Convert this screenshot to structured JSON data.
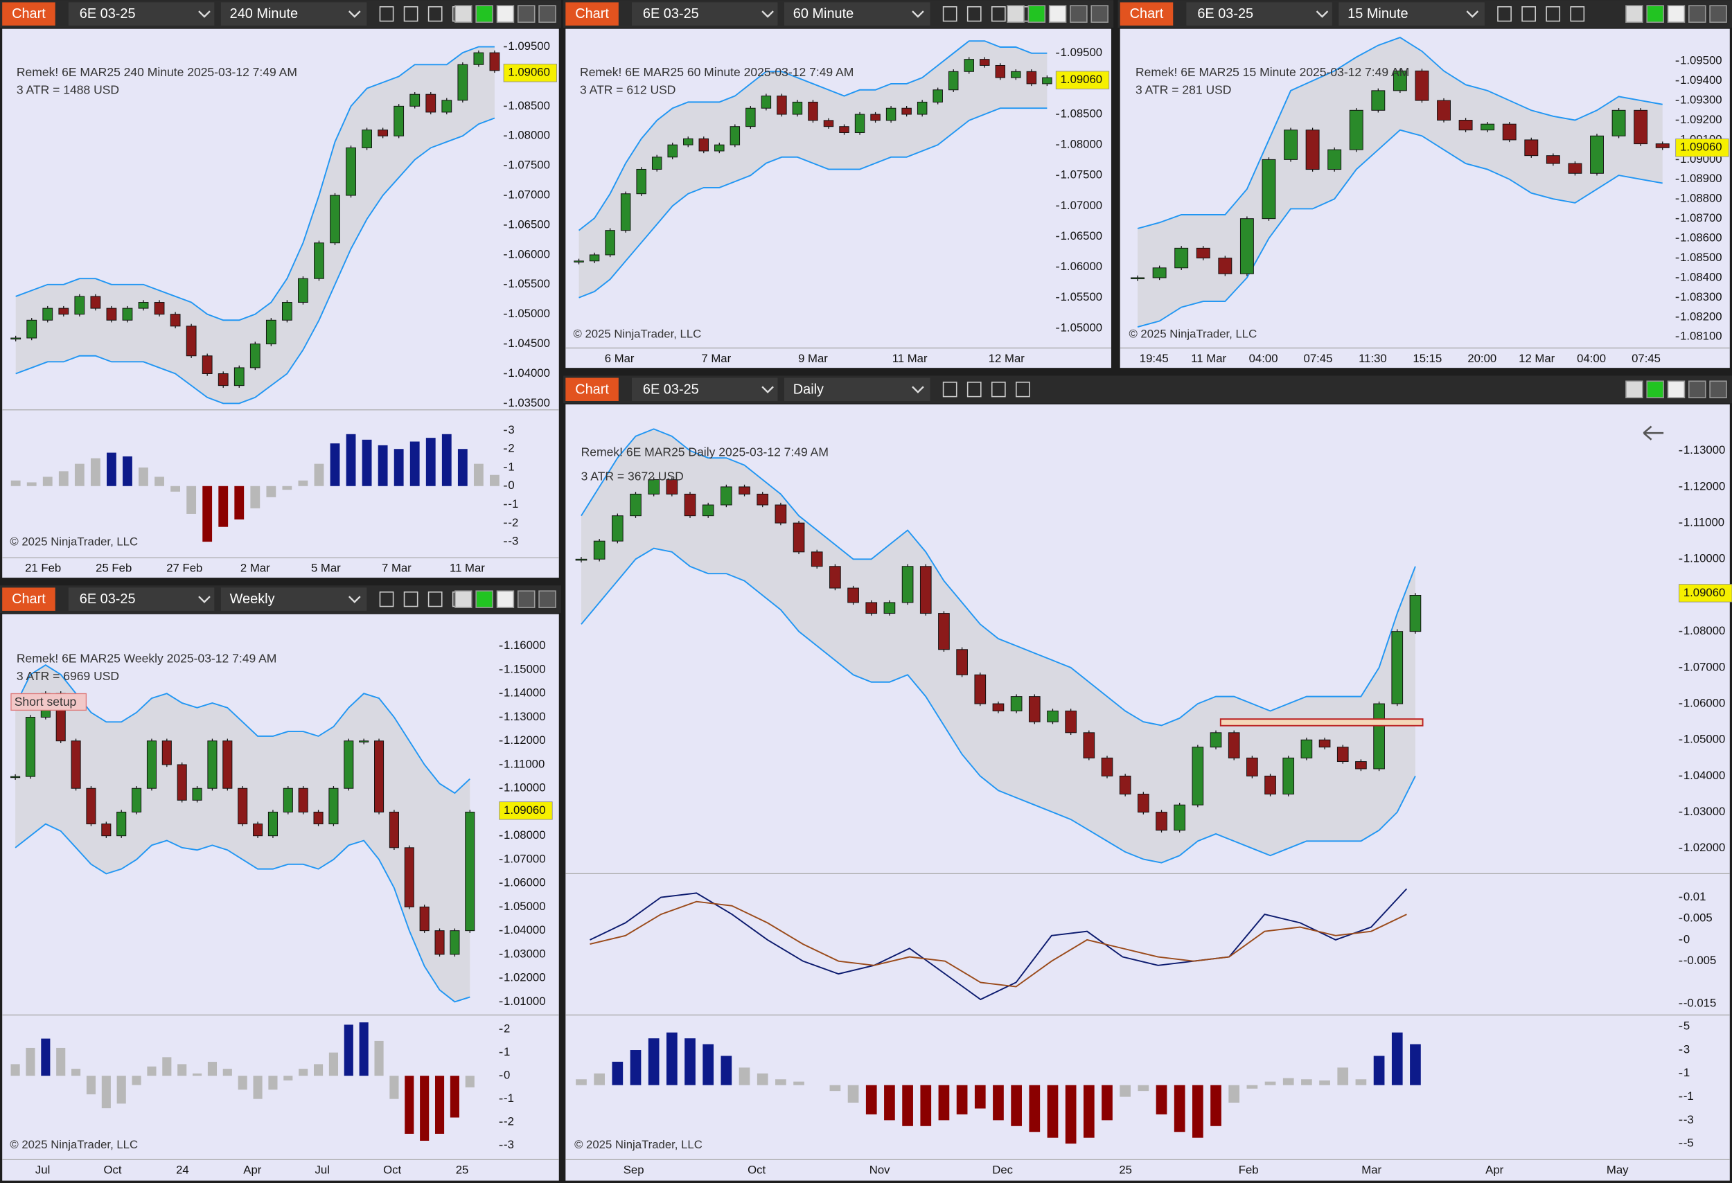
{
  "panels": [
    {
      "toolbar": {
        "button": "Chart",
        "instrument": "6E 03-25",
        "interval": "240 Minute"
      },
      "header": "Remek!  6E MAR25  240 Minute  2025-03-12 7:49 AM",
      "atr": "3 ATR = 1488 USD",
      "price_label": "1.09060",
      "ylim": [
        1.0341,
        1.0969
      ],
      "yticks": [
        "1.09500",
        "1.09000",
        "1.08500",
        "1.08000",
        "1.07500",
        "1.07000",
        "1.06500",
        "1.06000",
        "1.05500",
        "1.05000",
        "1.04500",
        "1.04000",
        "1.03500"
      ],
      "close": [
        1.046,
        1.049,
        1.051,
        1.05,
        1.053,
        1.051,
        1.049,
        1.051,
        1.052,
        1.05,
        1.048,
        1.043,
        1.04,
        1.038,
        1.041,
        1.045,
        1.049,
        1.052,
        1.056,
        1.062,
        1.07,
        1.078,
        1.081,
        1.08,
        1.085,
        1.087,
        1.084,
        1.086,
        1.092,
        1.094,
        1.091
      ],
      "upper": [
        1.053,
        1.054,
        1.055,
        1.055,
        1.056,
        1.056,
        1.055,
        1.055,
        1.055,
        1.054,
        1.053,
        1.052,
        1.05,
        1.049,
        1.049,
        1.05,
        1.052,
        1.056,
        1.062,
        1.07,
        1.079,
        1.085,
        1.088,
        1.089,
        1.09,
        1.092,
        1.092,
        1.092,
        1.094,
        1.095,
        1.095
      ],
      "lower": [
        1.04,
        1.041,
        1.042,
        1.042,
        1.043,
        1.043,
        1.042,
        1.042,
        1.042,
        1.041,
        1.04,
        1.038,
        1.036,
        1.035,
        1.035,
        1.036,
        1.038,
        1.04,
        1.044,
        1.049,
        1.055,
        1.061,
        1.066,
        1.07,
        1.073,
        1.076,
        1.078,
        1.079,
        1.08,
        1.082,
        1.083
      ],
      "indicator": {
        "ylim": [
          -3.57,
          4.05
        ],
        "yticks": [
          3,
          2,
          1,
          0,
          -1,
          -2,
          -3
        ],
        "values": [
          0.3,
          0.2,
          0.5,
          0.8,
          1.2,
          1.5,
          1.8,
          1.6,
          1.0,
          0.5,
          -0.3,
          -1.5,
          -3,
          -2.2,
          -1.8,
          -1.2,
          -0.6,
          -0.2,
          0.3,
          1.2,
          2.3,
          2.8,
          2.5,
          2.2,
          2,
          2.4,
          2.6,
          2.8,
          2,
          1.2,
          0.6
        ]
      },
      "xlabels": [
        "21 Feb",
        "25 Feb",
        "27 Feb",
        "2 Mar",
        "5 Mar",
        "7 Mar",
        "11 Mar"
      ],
      "copyright": "© 2025 NinjaTrader, LLC"
    },
    {
      "toolbar": {
        "button": "Chart",
        "instrument": "6E 03-25",
        "interval": "60 Minute"
      },
      "header": "Remek!  6E MAR25  60 Minute  2025-03-12 7:49 AM",
      "atr": "3 ATR = 612 USD",
      "price_label": "1.09060",
      "ylim": [
        1.0473,
        1.0979
      ],
      "yticks": [
        "1.09500",
        "1.09000",
        "1.08500",
        "1.08000",
        "1.07500",
        "1.07000",
        "1.06500",
        "1.06000",
        "1.05500",
        "1.05000"
      ],
      "close": [
        1.061,
        1.062,
        1.066,
        1.072,
        1.076,
        1.078,
        1.08,
        1.081,
        1.079,
        1.08,
        1.083,
        1.086,
        1.088,
        1.085,
        1.087,
        1.084,
        1.083,
        1.082,
        1.085,
        1.084,
        1.086,
        1.085,
        1.087,
        1.089,
        1.092,
        1.094,
        1.093,
        1.091,
        1.092,
        1.09,
        1.091
      ],
      "upper": [
        1.066,
        1.068,
        1.072,
        1.077,
        1.081,
        1.084,
        1.086,
        1.087,
        1.087,
        1.087,
        1.088,
        1.09,
        1.092,
        1.092,
        1.091,
        1.09,
        1.089,
        1.088,
        1.089,
        1.089,
        1.09,
        1.09,
        1.091,
        1.093,
        1.095,
        1.097,
        1.097,
        1.096,
        1.096,
        1.095,
        1.095
      ],
      "lower": [
        1.055,
        1.056,
        1.058,
        1.061,
        1.064,
        1.067,
        1.07,
        1.072,
        1.073,
        1.073,
        1.074,
        1.075,
        1.077,
        1.078,
        1.078,
        1.077,
        1.076,
        1.076,
        1.076,
        1.077,
        1.078,
        1.078,
        1.079,
        1.08,
        1.082,
        1.084,
        1.085,
        1.086,
        1.086,
        1.086,
        1.086
      ],
      "xlabels": [
        "6 Mar",
        "7 Mar",
        "9 Mar",
        "11 Mar",
        "12 Mar"
      ],
      "copyright": "© 2025 NinjaTrader, LLC"
    },
    {
      "toolbar": {
        "button": "Chart",
        "instrument": "6E 03-25",
        "interval": "15 Minute"
      },
      "header": "Remek!  6E MAR25  15 Minute  2025-03-12 7:49 AM",
      "atr": "3 ATR = 281 USD",
      "price_label": "1.09060",
      "ylim": [
        1.0806,
        1.0963
      ],
      "yticks": [
        "1.09500",
        "1.09400",
        "1.09300",
        "1.09200",
        "1.09100",
        "1.09000",
        "1.08900",
        "1.08800",
        "1.08700",
        "1.08600",
        "1.08500",
        "1.08400",
        "1.08300",
        "1.08200",
        "1.08100"
      ],
      "close": [
        1.084,
        1.0845,
        1.0855,
        1.085,
        1.0842,
        1.087,
        1.09,
        1.0915,
        1.0895,
        1.0905,
        1.0925,
        1.0935,
        1.0945,
        1.093,
        1.092,
        1.0915,
        1.0918,
        1.091,
        1.0902,
        1.0898,
        1.0893,
        1.0912,
        1.0925,
        1.0908,
        1.0906
      ],
      "upper": [
        1.0865,
        1.0868,
        1.0872,
        1.0872,
        1.0872,
        1.0885,
        1.091,
        1.0935,
        1.094,
        1.0945,
        1.0952,
        1.0958,
        1.0962,
        1.0955,
        1.0945,
        1.0938,
        1.0935,
        1.093,
        1.0925,
        1.0922,
        1.092,
        1.0925,
        1.0932,
        1.093,
        1.0928
      ],
      "lower": [
        1.0815,
        1.0818,
        1.0825,
        1.0828,
        1.0828,
        1.084,
        1.086,
        1.0875,
        1.0875,
        1.088,
        1.0895,
        1.0905,
        1.0915,
        1.0912,
        1.0905,
        1.0898,
        1.0895,
        1.089,
        1.0883,
        1.088,
        1.0878,
        1.0885,
        1.0892,
        1.089,
        1.0888
      ],
      "xlabels": [
        "19:45",
        "11 Mar",
        "04:00",
        "07:45",
        "11:30",
        "15:15",
        "20:00",
        "12 Mar",
        "04:00",
        "07:45"
      ],
      "copyright": "© 2025 NinjaTrader, LLC"
    },
    {
      "toolbar": {
        "button": "Chart",
        "instrument": "6E 03-25",
        "interval": "Weekly"
      },
      "header": "Remek!  6E MAR25  Weekly  2025-03-12 7:49 AM",
      "atr": "3 ATR = 6969 USD",
      "setup_label": "Short setup",
      "price_label": "1.09060",
      "ylim": [
        1.0049,
        1.1702
      ],
      "yticks": [
        "1.16000",
        "1.15000",
        "1.14000",
        "1.13000",
        "1.12000",
        "1.11000",
        "1.10000",
        "1.09000",
        "1.08000",
        "1.07000",
        "1.06000",
        "1.05000",
        "1.04000",
        "1.03000",
        "1.02000",
        "1.01000"
      ],
      "close": [
        1.105,
        1.13,
        1.14,
        1.12,
        1.1,
        1.085,
        1.08,
        1.09,
        1.1,
        1.12,
        1.11,
        1.095,
        1.1,
        1.12,
        1.1,
        1.085,
        1.08,
        1.09,
        1.1,
        1.09,
        1.085,
        1.1,
        1.12,
        1.12,
        1.09,
        1.075,
        1.05,
        1.04,
        1.03,
        1.04,
        1.09
      ],
      "upper": [
        1.135,
        1.148,
        1.152,
        1.148,
        1.14,
        1.132,
        1.128,
        1.128,
        1.132,
        1.138,
        1.14,
        1.136,
        1.134,
        1.136,
        1.134,
        1.128,
        1.122,
        1.122,
        1.124,
        1.124,
        1.122,
        1.126,
        1.134,
        1.14,
        1.138,
        1.13,
        1.12,
        1.11,
        1.102,
        1.098,
        1.104
      ],
      "lower": [
        1.075,
        1.08,
        1.085,
        1.082,
        1.075,
        1.068,
        1.064,
        1.066,
        1.07,
        1.076,
        1.078,
        1.075,
        1.074,
        1.076,
        1.074,
        1.07,
        1.066,
        1.066,
        1.068,
        1.068,
        1.066,
        1.07,
        1.076,
        1.078,
        1.07,
        1.058,
        1.04,
        1.025,
        1.015,
        1.01,
        1.012
      ],
      "indicator": {
        "ylim": [
          -3.52,
          2.57
        ],
        "yticks": [
          2,
          1,
          0,
          -1,
          -2,
          -3
        ],
        "values": [
          0.5,
          1.2,
          1.6,
          1.2,
          0.3,
          -0.8,
          -1.4,
          -1.2,
          -0.4,
          0.4,
          0.8,
          0.5,
          0.1,
          0.6,
          0.3,
          -0.6,
          -1.0,
          -0.6,
          -0.2,
          0.3,
          0.5,
          1.0,
          2.2,
          2.3,
          1.5,
          -1.0,
          -2.5,
          -2.8,
          -2.5,
          -1.8,
          -0.5
        ]
      },
      "xlabels": [
        "Jul",
        "Oct",
        "24",
        "Apr",
        "Jul",
        "Oct",
        "25"
      ],
      "copyright": "© 2025 NinjaTrader, LLC"
    },
    {
      "toolbar": {
        "button": "Chart",
        "instrument": "6E 03-25",
        "interval": "Daily"
      },
      "header": "Remek!  6E MAR25  Daily  2025-03-12 7:49 AM",
      "atr": "3 ATR = 3672 USD",
      "price_label": "1.09060",
      "ylim": [
        1.0133,
        1.141
      ],
      "yticks": [
        "1.13000",
        "1.12000",
        "1.11000",
        "1.10000",
        "1.09000",
        "1.08000",
        "1.07000",
        "1.06000",
        "1.05000",
        "1.04000",
        "1.03000",
        "1.02000"
      ],
      "close": [
        1.1,
        1.105,
        1.112,
        1.118,
        1.122,
        1.118,
        1.112,
        1.115,
        1.12,
        1.118,
        1.115,
        1.11,
        1.102,
        1.098,
        1.092,
        1.088,
        1.085,
        1.088,
        1.098,
        1.085,
        1.075,
        1.068,
        1.06,
        1.058,
        1.062,
        1.055,
        1.058,
        1.052,
        1.045,
        1.04,
        1.035,
        1.03,
        1.025,
        1.032,
        1.048,
        1.052,
        1.045,
        1.04,
        1.035,
        1.045,
        1.05,
        1.048,
        1.044,
        1.042,
        1.06,
        1.08,
        1.09
      ],
      "upper": [
        1.112,
        1.12,
        1.128,
        1.134,
        1.136,
        1.134,
        1.13,
        1.128,
        1.128,
        1.126,
        1.122,
        1.118,
        1.112,
        1.108,
        1.104,
        1.1,
        1.1,
        1.104,
        1.108,
        1.102,
        1.094,
        1.088,
        1.082,
        1.078,
        1.076,
        1.074,
        1.072,
        1.07,
        1.066,
        1.062,
        1.058,
        1.055,
        1.054,
        1.056,
        1.06,
        1.062,
        1.062,
        1.06,
        1.058,
        1.06,
        1.062,
        1.062,
        1.062,
        1.062,
        1.07,
        1.085,
        1.098
      ],
      "lower": [
        1.082,
        1.088,
        1.094,
        1.1,
        1.103,
        1.102,
        1.098,
        1.096,
        1.096,
        1.094,
        1.09,
        1.086,
        1.08,
        1.076,
        1.072,
        1.068,
        1.066,
        1.066,
        1.068,
        1.062,
        1.054,
        1.046,
        1.04,
        1.036,
        1.034,
        1.032,
        1.03,
        1.028,
        1.025,
        1.022,
        1.019,
        1.017,
        1.016,
        1.018,
        1.022,
        1.024,
        1.022,
        1.02,
        1.018,
        1.02,
        1.022,
        1.022,
        1.022,
        1.022,
        1.025,
        1.03,
        1.04
      ],
      "macd": {
        "ylim": [
          -0.0174,
          0.0153
        ],
        "yticks": [
          0.01,
          0.005,
          0,
          -0.005,
          -0.015
        ],
        "lines": [
          {
            "color": "#0b1a6e",
            "values": [
              0.0,
              0.004,
              0.01,
              0.011,
              0.006,
              0.0,
              -0.005,
              -0.008,
              -0.006,
              -0.002,
              -0.008,
              -0.014,
              -0.01,
              0.001,
              0.002,
              -0.004,
              -0.006,
              -0.005,
              -0.004,
              0.006,
              0.004,
              0.0,
              0.003,
              0.012
            ]
          },
          {
            "color": "#9a4a1a",
            "values": [
              -0.001,
              0.001,
              0.006,
              0.009,
              0.008,
              0.004,
              -0.001,
              -0.005,
              -0.006,
              -0.004,
              -0.005,
              -0.01,
              -0.011,
              -0.005,
              0.0,
              -0.002,
              -0.004,
              -0.005,
              -0.004,
              0.002,
              0.003,
              0.001,
              0.002,
              0.006
            ]
          }
        ]
      },
      "indicator": {
        "ylim": [
          -5.9,
          5.9
        ],
        "yticks": [
          5,
          3,
          1,
          -1,
          -3,
          -5
        ],
        "values": [
          0.5,
          1,
          2,
          3,
          4,
          4.5,
          4,
          3.5,
          2.5,
          1.5,
          1,
          0.5,
          0.3,
          0,
          -0.5,
          -1.5,
          -2.5,
          -3,
          -3.5,
          -3.5,
          -3,
          -2.5,
          -2,
          -3,
          -3.5,
          -4,
          -4.5,
          -5,
          -4.5,
          -3,
          -1,
          -0.5,
          -2.5,
          -4,
          -4.5,
          -3.5,
          -1.5,
          -0.3,
          0.3,
          0.6,
          0.5,
          0.4,
          1.5,
          0.5,
          2.5,
          4.5,
          3.5
        ]
      },
      "xlabels": [
        "Sep",
        "Oct",
        "Nov",
        "Dec",
        "25",
        "Feb",
        "Mar",
        "Apr",
        "May"
      ],
      "copyright": "© 2025 NinjaTrader, LLC"
    }
  ]
}
